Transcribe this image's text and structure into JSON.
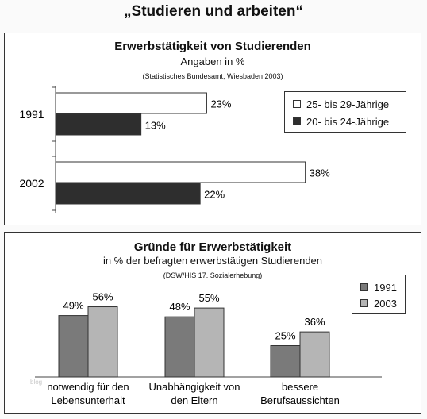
{
  "title": "„Studieren und arbeiten“",
  "watermark": "blog",
  "chart_data": [
    {
      "type": "bar",
      "orientation": "horizontal",
      "title": "Erwerbstätigkeit von Studierenden",
      "subtitle": "Angaben in %",
      "source": "(Statistisches Bundesamt, Wiesbaden 2003)",
      "categories": [
        "1991",
        "2002"
      ],
      "series": [
        {
          "name": "25- bis 29-Jährige",
          "values": [
            23,
            38
          ],
          "labels": [
            "23%",
            "38%"
          ],
          "color": "#ffffff"
        },
        {
          "name": "20- bis 24-Jährige",
          "values": [
            13,
            22
          ],
          "labels": [
            "13%",
            "22%"
          ],
          "color": "#2e2e2e"
        }
      ],
      "xlim": [
        0,
        40
      ],
      "legend": "right"
    },
    {
      "type": "bar",
      "title": "Gründe für Erwerbstätigkeit",
      "subtitle": "in % der befragten erwerbstätigen Studierenden",
      "source": "(DSW/HIS 17. Sozialerhebung)",
      "categories": [
        [
          "notwendig für den",
          "Lebensunterhalt"
        ],
        [
          "Unabhängigkeit von",
          "den Eltern"
        ],
        [
          "bessere",
          "Berufsaussichten"
        ]
      ],
      "series": [
        {
          "name": "1991",
          "values": [
            49,
            48,
            25
          ],
          "labels": [
            "49%",
            "48%",
            "25%"
          ],
          "color": "#7a7a7a"
        },
        {
          "name": "2003",
          "values": [
            56,
            55,
            36
          ],
          "labels": [
            "56%",
            "55%",
            "36%"
          ],
          "color": "#b5b5b5"
        }
      ],
      "ylim": [
        0,
        60
      ],
      "legend": "top-right"
    }
  ]
}
